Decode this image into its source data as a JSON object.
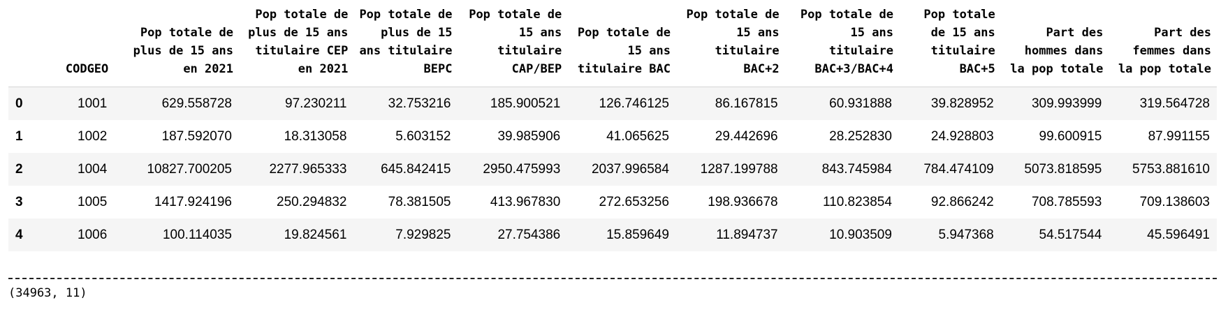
{
  "dataframe": {
    "columns": [
      "",
      "CODGEO",
      "Pop totale de plus de 15 ans en 2021",
      "Pop totale de plus de 15 ans titulaire CEP en 2021",
      "Pop totale de plus de 15 ans titulaire BEPC",
      "Pop totale de 15 ans titulaire CAP/BEP",
      "Pop totale de 15 ans titulaire BAC",
      "Pop totale de 15 ans titulaire BAC+2",
      "Pop totale de 15 ans titulaire BAC+3/BAC+4",
      "Pop totale de 15 ans titulaire BAC+5",
      "Part des hommes dans la pop totale",
      "Part des femmes dans la pop totale"
    ],
    "rows": [
      [
        "0",
        "1001",
        "629.558728",
        "97.230211",
        "32.753216",
        "185.900521",
        "126.746125",
        "86.167815",
        "60.931888",
        "39.828952",
        "309.993999",
        "319.564728"
      ],
      [
        "1",
        "1002",
        "187.592070",
        "18.313058",
        "5.603152",
        "39.985906",
        "41.065625",
        "29.442696",
        "28.252830",
        "24.928803",
        "99.600915",
        "87.991155"
      ],
      [
        "2",
        "1004",
        "10827.700205",
        "2277.965333",
        "645.842415",
        "2950.475993",
        "2037.996584",
        "1287.199788",
        "843.745984",
        "784.474109",
        "5073.818595",
        "5753.881610"
      ],
      [
        "3",
        "1005",
        "1417.924196",
        "250.294832",
        "78.381505",
        "413.967830",
        "272.653256",
        "198.936678",
        "110.823854",
        "92.866242",
        "708.785593",
        "709.138603"
      ],
      [
        "4",
        "1006",
        "100.114035",
        "19.824561",
        "7.929825",
        "27.754386",
        "15.859649",
        "11.894737",
        "10.903509",
        "5.947368",
        "54.517544",
        "45.596491"
      ]
    ]
  },
  "separator_text": "----------------------------------------------------------------------------------------------------------------------------------------------------------------------------------------",
  "shape_text": "(34963, 11)"
}
